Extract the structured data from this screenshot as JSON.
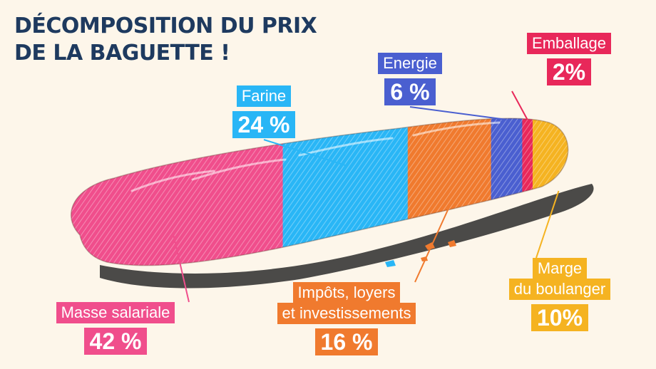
{
  "title": {
    "line1": "DÉCOMPOSITION DU PRIX",
    "line2": "DE LA BAGUETTE !"
  },
  "chart_data": {
    "type": "bar",
    "title": "DÉCOMPOSITION DU PRIX DE LA BAGUETTE !",
    "unit": "%",
    "segments": [
      {
        "label": "Masse salariale",
        "value": 42,
        "display": "42 %",
        "color": "#f04e8c"
      },
      {
        "label": "Farine",
        "value": 24,
        "display": "24 %",
        "color": "#29b6f6"
      },
      {
        "label": "Impôts, loyers et investissements",
        "label_lines": [
          "Impôts, loyers",
          "et investissements"
        ],
        "value": 16,
        "display": "16 %",
        "color": "#f07a2e"
      },
      {
        "label": "Energie",
        "value": 6,
        "display": "6 %",
        "color": "#4a5fd0"
      },
      {
        "label": "Emballage",
        "value": 2,
        "display": "2%",
        "color": "#e8285a"
      },
      {
        "label": "Marge du boulanger",
        "label_lines": [
          "Marge",
          "du boulanger"
        ],
        "value": 10,
        "display": "10%",
        "color": "#f5b321"
      }
    ]
  }
}
